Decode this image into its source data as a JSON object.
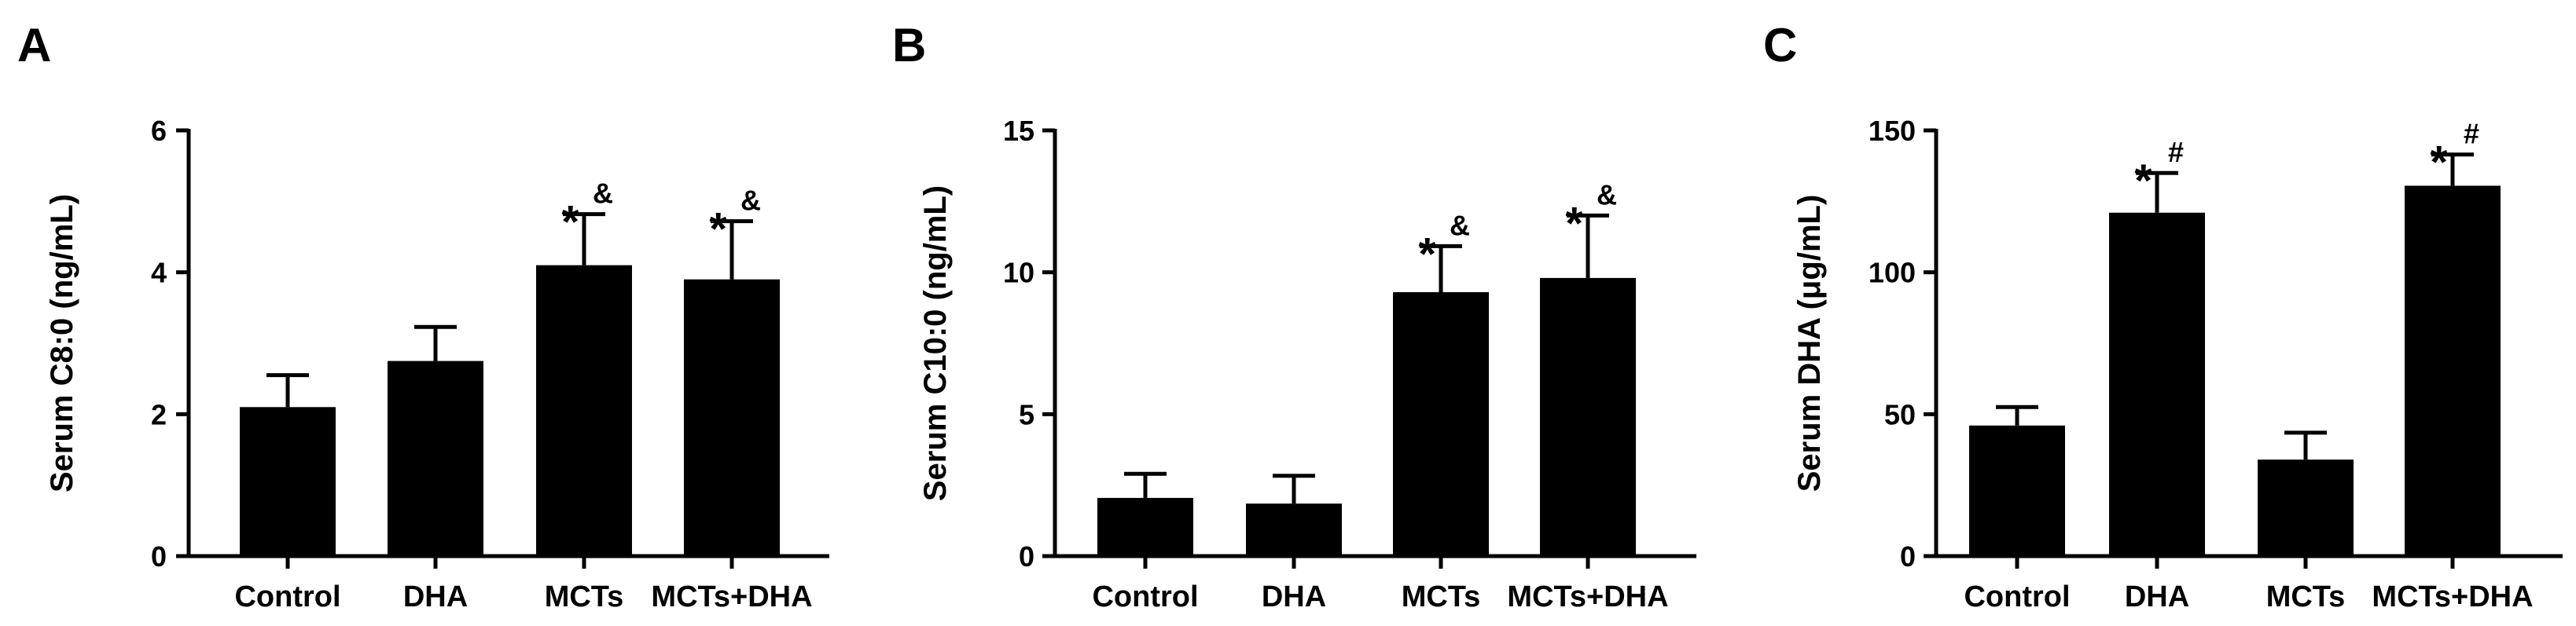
{
  "chart_data": [
    {
      "type": "bar",
      "panel": "A",
      "ylabel": "Serum C8:0 (ng/mL)",
      "ylim": [
        0,
        6
      ],
      "yticks": [
        0,
        2,
        4,
        6
      ],
      "categories": [
        "Control",
        "DHA",
        "MCTs",
        "MCTs+DHA"
      ],
      "values": [
        2.1,
        2.75,
        4.1,
        3.9
      ],
      "errors": [
        0.45,
        0.48,
        0.72,
        0.82
      ],
      "annotations": [
        {
          "star": "",
          "mark": ""
        },
        {
          "star": "",
          "mark": ""
        },
        {
          "star": "*",
          "mark": "&"
        },
        {
          "star": "*",
          "mark": "&"
        }
      ]
    },
    {
      "type": "bar",
      "panel": "B",
      "ylabel": "Serum C10:0 (ng/mL)",
      "ylim": [
        0,
        15
      ],
      "yticks": [
        0,
        5,
        10,
        15
      ],
      "categories": [
        "Control",
        "DHA",
        "MCTs",
        "MCTs+DHA"
      ],
      "values": [
        2.05,
        1.85,
        9.3,
        9.8
      ],
      "errors": [
        0.85,
        0.98,
        1.62,
        2.2
      ],
      "annotations": [
        {
          "star": "",
          "mark": ""
        },
        {
          "star": "",
          "mark": ""
        },
        {
          "star": "*",
          "mark": "&"
        },
        {
          "star": "*",
          "mark": "&"
        }
      ]
    },
    {
      "type": "bar",
      "panel": "C",
      "ylabel": "Serum DHA (μg/mL)",
      "ylim": [
        0,
        150
      ],
      "yticks": [
        0,
        50,
        100,
        150
      ],
      "categories": [
        "Control",
        "DHA",
        "MCTs",
        "MCTs+DHA"
      ],
      "values": [
        46,
        121,
        34,
        130.5
      ],
      "errors": [
        6.5,
        14,
        9.5,
        11
      ],
      "annotations": [
        {
          "star": "",
          "mark": ""
        },
        {
          "star": "*",
          "mark": "#"
        },
        {
          "star": "",
          "mark": ""
        },
        {
          "star": "*",
          "mark": "#"
        }
      ]
    }
  ]
}
